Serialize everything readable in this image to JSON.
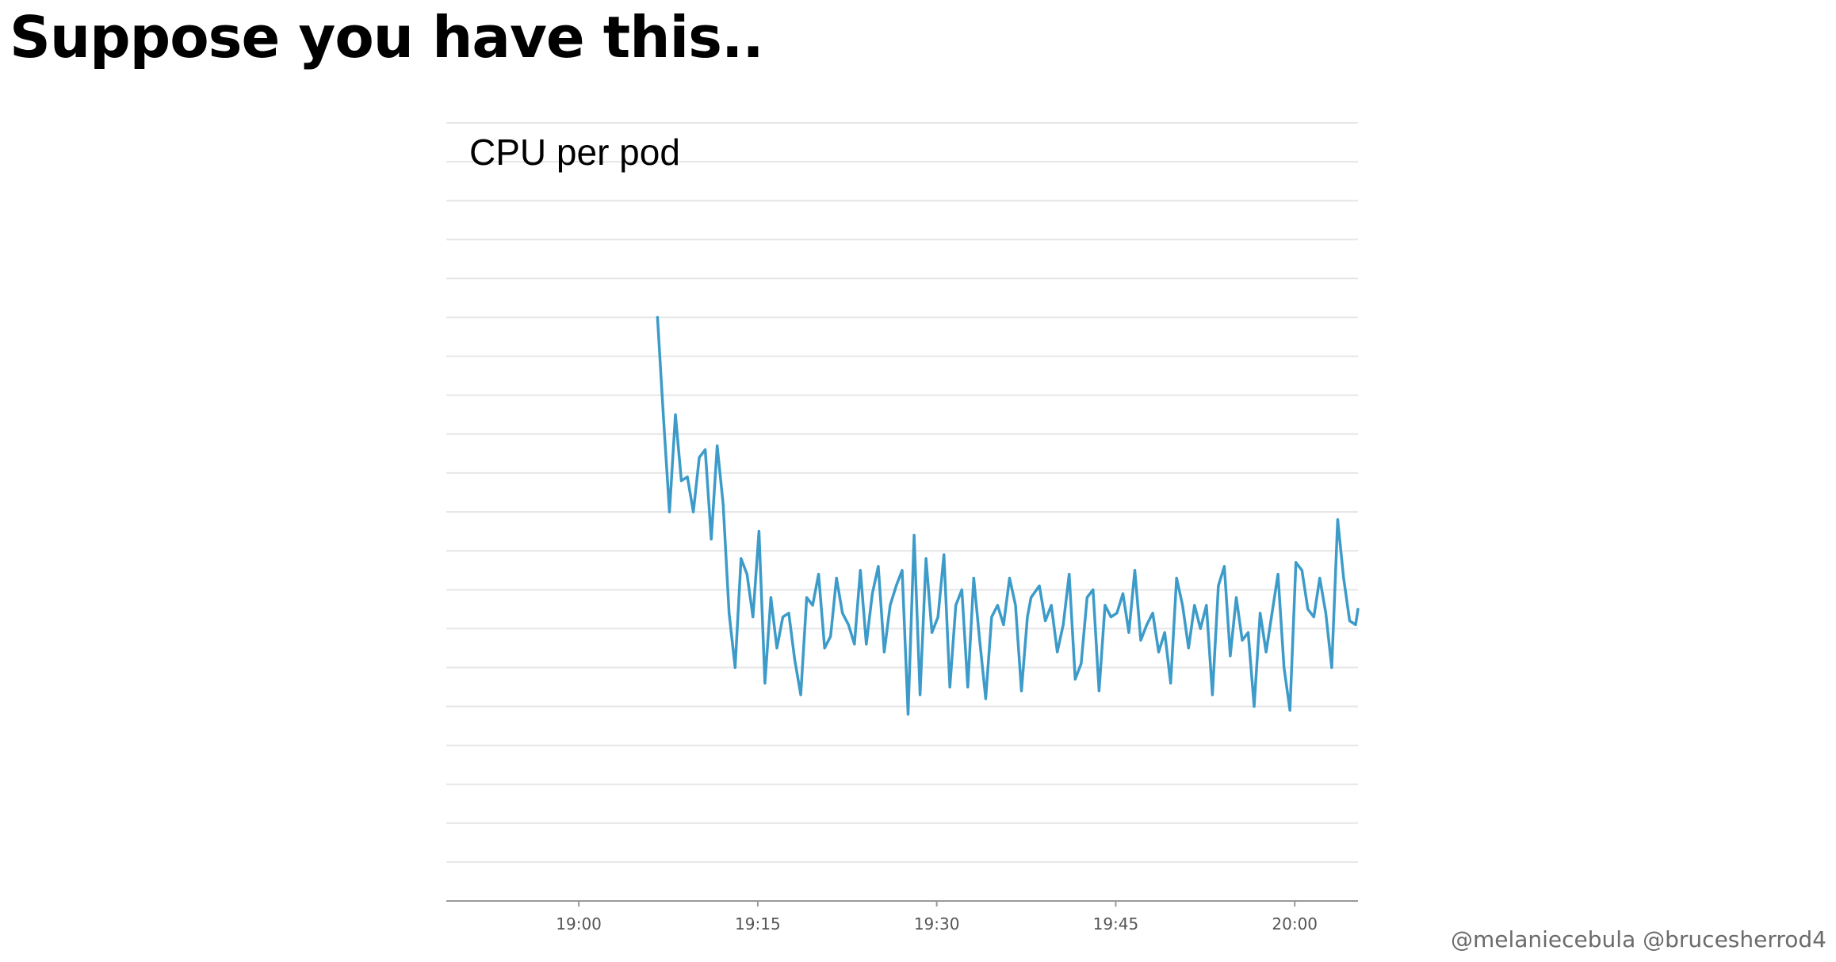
{
  "slide": {
    "title": "Suppose you have this..",
    "credit": "@melaniecebula @brucesherrod4"
  },
  "chart_data": {
    "type": "line",
    "title": "CPU per pod",
    "xlabel": "",
    "ylabel": "",
    "x_unit": "minutes",
    "x_ticks": [
      {
        "label": "19:00",
        "value": 0
      },
      {
        "label": "19:15",
        "value": 15
      },
      {
        "label": "19:30",
        "value": 30
      },
      {
        "label": "19:45",
        "value": 45
      },
      {
        "label": "20:00",
        "value": 60
      }
    ],
    "xlim": [
      -11.1,
      65.3
    ],
    "ylim": [
      0,
      20
    ],
    "grid": {
      "horizontal": true,
      "vertical": false,
      "lines": 20
    },
    "colors": {
      "series": "#3d9bc9"
    },
    "series": [
      {
        "name": "",
        "values": [
          [
            6.6,
            15.0
          ],
          [
            7.1,
            12.4
          ],
          [
            7.6,
            10.0
          ],
          [
            8.1,
            12.5
          ],
          [
            8.6,
            10.8
          ],
          [
            9.1,
            10.9
          ],
          [
            9.6,
            10.0
          ],
          [
            10.1,
            11.4
          ],
          [
            10.6,
            11.6
          ],
          [
            11.1,
            9.3
          ],
          [
            11.6,
            11.7
          ],
          [
            12.1,
            10.2
          ],
          [
            12.6,
            7.4
          ],
          [
            13.1,
            6.0
          ],
          [
            13.6,
            8.8
          ],
          [
            14.1,
            8.4
          ],
          [
            14.6,
            7.3
          ],
          [
            15.1,
            9.5
          ],
          [
            15.6,
            5.6
          ],
          [
            16.1,
            7.8
          ],
          [
            16.6,
            6.5
          ],
          [
            17.1,
            7.3
          ],
          [
            17.6,
            7.4
          ],
          [
            18.1,
            6.2
          ],
          [
            18.6,
            5.3
          ],
          [
            19.1,
            7.8
          ],
          [
            19.6,
            7.6
          ],
          [
            20.1,
            8.4
          ],
          [
            20.6,
            6.5
          ],
          [
            21.1,
            6.8
          ],
          [
            21.6,
            8.3
          ],
          [
            22.1,
            7.4
          ],
          [
            22.6,
            7.1
          ],
          [
            23.1,
            6.6
          ],
          [
            23.6,
            8.5
          ],
          [
            24.1,
            6.6
          ],
          [
            24.6,
            7.9
          ],
          [
            25.1,
            8.6
          ],
          [
            25.6,
            6.4
          ],
          [
            26.1,
            7.6
          ],
          [
            26.6,
            8.1
          ],
          [
            27.1,
            8.5
          ],
          [
            27.6,
            4.8
          ],
          [
            28.1,
            9.4
          ],
          [
            28.6,
            5.3
          ],
          [
            29.1,
            8.8
          ],
          [
            29.6,
            6.9
          ],
          [
            30.1,
            7.3
          ],
          [
            30.6,
            8.9
          ],
          [
            31.1,
            5.5
          ],
          [
            31.6,
            7.6
          ],
          [
            32.1,
            8.0
          ],
          [
            32.6,
            5.5
          ],
          [
            33.1,
            8.3
          ],
          [
            33.6,
            6.7
          ],
          [
            34.1,
            5.2
          ],
          [
            34.6,
            7.3
          ],
          [
            35.1,
            7.6
          ],
          [
            35.6,
            7.1
          ],
          [
            36.1,
            8.3
          ],
          [
            36.6,
            7.6
          ],
          [
            37.1,
            5.4
          ],
          [
            37.6,
            7.3
          ],
          [
            37.9,
            7.8
          ],
          [
            38.6,
            8.1
          ],
          [
            39.1,
            7.2
          ],
          [
            39.6,
            7.6
          ],
          [
            40.1,
            6.4
          ],
          [
            40.6,
            7.1
          ],
          [
            41.1,
            8.4
          ],
          [
            41.6,
            5.7
          ],
          [
            42.1,
            6.1
          ],
          [
            42.6,
            7.8
          ],
          [
            43.1,
            8.0
          ],
          [
            43.6,
            5.4
          ],
          [
            44.1,
            7.6
          ],
          [
            44.6,
            7.3
          ],
          [
            45.1,
            7.4
          ],
          [
            45.6,
            7.9
          ],
          [
            46.1,
            6.9
          ],
          [
            46.6,
            8.5
          ],
          [
            47.1,
            6.7
          ],
          [
            47.6,
            7.1
          ],
          [
            48.1,
            7.4
          ],
          [
            48.6,
            6.4
          ],
          [
            49.1,
            6.9
          ],
          [
            49.6,
            5.6
          ],
          [
            50.1,
            8.3
          ],
          [
            50.6,
            7.6
          ],
          [
            51.1,
            6.5
          ],
          [
            51.6,
            7.6
          ],
          [
            52.1,
            7.0
          ],
          [
            52.6,
            7.6
          ],
          [
            53.1,
            5.3
          ],
          [
            53.6,
            8.1
          ],
          [
            54.1,
            8.6
          ],
          [
            54.6,
            6.3
          ],
          [
            55.1,
            7.8
          ],
          [
            55.6,
            6.7
          ],
          [
            56.1,
            6.9
          ],
          [
            56.6,
            5.0
          ],
          [
            57.1,
            7.4
          ],
          [
            57.6,
            6.4
          ],
          [
            58.1,
            7.4
          ],
          [
            58.6,
            8.4
          ],
          [
            59.1,
            6.0
          ],
          [
            59.6,
            4.9
          ],
          [
            60.1,
            8.7
          ],
          [
            60.6,
            8.5
          ],
          [
            61.1,
            7.5
          ],
          [
            61.6,
            7.3
          ],
          [
            62.1,
            8.3
          ],
          [
            62.6,
            7.4
          ],
          [
            63.1,
            6.0
          ],
          [
            63.6,
            9.8
          ],
          [
            64.1,
            8.3
          ],
          [
            64.6,
            7.2
          ],
          [
            65.1,
            7.1
          ],
          [
            65.3,
            7.5
          ]
        ]
      }
    ]
  }
}
